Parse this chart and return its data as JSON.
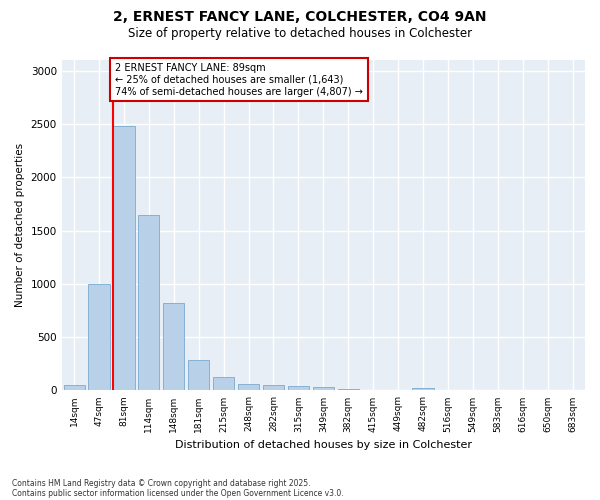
{
  "title_line1": "2, ERNEST FANCY LANE, COLCHESTER, CO4 9AN",
  "title_line2": "Size of property relative to detached houses in Colchester",
  "xlabel": "Distribution of detached houses by size in Colchester",
  "ylabel": "Number of detached properties",
  "categories": [
    "14sqm",
    "47sqm",
    "81sqm",
    "114sqm",
    "148sqm",
    "181sqm",
    "215sqm",
    "248sqm",
    "282sqm",
    "315sqm",
    "349sqm",
    "382sqm",
    "415sqm",
    "449sqm",
    "482sqm",
    "516sqm",
    "549sqm",
    "583sqm",
    "616sqm",
    "650sqm",
    "683sqm"
  ],
  "values": [
    50,
    1000,
    2480,
    1650,
    820,
    290,
    130,
    60,
    55,
    40,
    30,
    15,
    0,
    0,
    25,
    0,
    0,
    0,
    0,
    0,
    0
  ],
  "bar_color": "#b8d0e8",
  "bar_edge_color": "#7aaacf",
  "highlight_index": 2,
  "annotation_line1": "2 ERNEST FANCY LANE: 89sqm",
  "annotation_line2": "← 25% of detached houses are smaller (1,643)",
  "annotation_line3": "74% of semi-detached houses are larger (4,807) →",
  "annotation_box_color": "#ffffff",
  "annotation_box_edge_color": "#cc0000",
  "ylim": [
    0,
    3100
  ],
  "yticks": [
    0,
    500,
    1000,
    1500,
    2000,
    2500,
    3000
  ],
  "footnote_line1": "Contains HM Land Registry data © Crown copyright and database right 2025.",
  "footnote_line2": "Contains public sector information licensed under the Open Government Licence v3.0.",
  "bg_color": "#ffffff",
  "plot_bg_color": "#e8eef5"
}
